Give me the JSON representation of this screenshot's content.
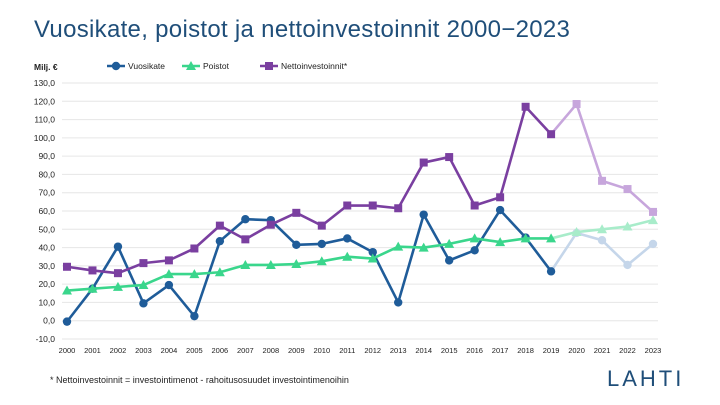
{
  "title": "Vuosikate, poistot ja nettoinvestoinnit 2000−2023",
  "footnote": "* Nettoinvestoinnit = investointimenot - rahoitusosuudet investointimenoihin",
  "logo_text": "LAHTI",
  "colors": {
    "title": "#1f4e79",
    "vuosikate": "#1f5c99",
    "vuosikate_light": "#c5d6ea",
    "poistot": "#3ad68c",
    "poistot_light": "#a8ecca",
    "netto": "#7a3fa0",
    "netto_light": "#c7a6dc",
    "grid": "#e6e6e6"
  },
  "chart_data": {
    "type": "line",
    "unit_label": "Milj. €",
    "ylim": [
      -10,
      130
    ],
    "yticks": [
      "130,0",
      "120,0",
      "110,0",
      "100,0",
      "90,0",
      "80,0",
      "70,0",
      "60,0",
      "50,0",
      "40,0",
      "30,0",
      "20,0",
      "10,0",
      "0,0",
      "-10,0"
    ],
    "yticks_values": [
      130,
      120,
      110,
      100,
      90,
      80,
      70,
      60,
      50,
      40,
      30,
      20,
      10,
      0,
      -10
    ],
    "categories": [
      "2000",
      "2001",
      "2002",
      "2003",
      "2004",
      "2005",
      "2006",
      "2007",
      "2008",
      "2009",
      "2010",
      "2011",
      "2012",
      "2013",
      "2014",
      "2015",
      "2016",
      "2017",
      "2018",
      "2019",
      "2020",
      "2021",
      "2022",
      "2023"
    ],
    "grid": true,
    "legend_position": "top",
    "faded_from_index": 20,
    "series": [
      {
        "name": "Vuosikate",
        "marker": "circle",
        "values": [
          -0.5,
          17.5,
          40.5,
          9.5,
          19.5,
          2.5,
          43.5,
          55.5,
          55,
          41.5,
          42,
          45,
          37.5,
          10,
          58,
          33,
          38.5,
          60.5,
          45.5,
          27,
          48,
          44,
          30.5,
          42
        ]
      },
      {
        "name": "Poistot",
        "marker": "triangle",
        "values": [
          16.5,
          17.5,
          18.5,
          19.5,
          25.5,
          25.5,
          26.5,
          30.5,
          30.5,
          31,
          32.5,
          35,
          34,
          40.5,
          40,
          42,
          45,
          43,
          45,
          45,
          48.5,
          50,
          51.5,
          55
        ]
      },
      {
        "name": "Nettoinvestoinnit*",
        "marker": "square",
        "values": [
          29.5,
          27.5,
          26,
          31.5,
          33,
          39.5,
          52,
          44.5,
          52.5,
          59,
          52,
          63,
          63,
          61.5,
          86.5,
          89.5,
          63,
          67.5,
          117,
          102,
          118.5,
          76.5,
          72,
          59.5
        ]
      }
    ]
  }
}
